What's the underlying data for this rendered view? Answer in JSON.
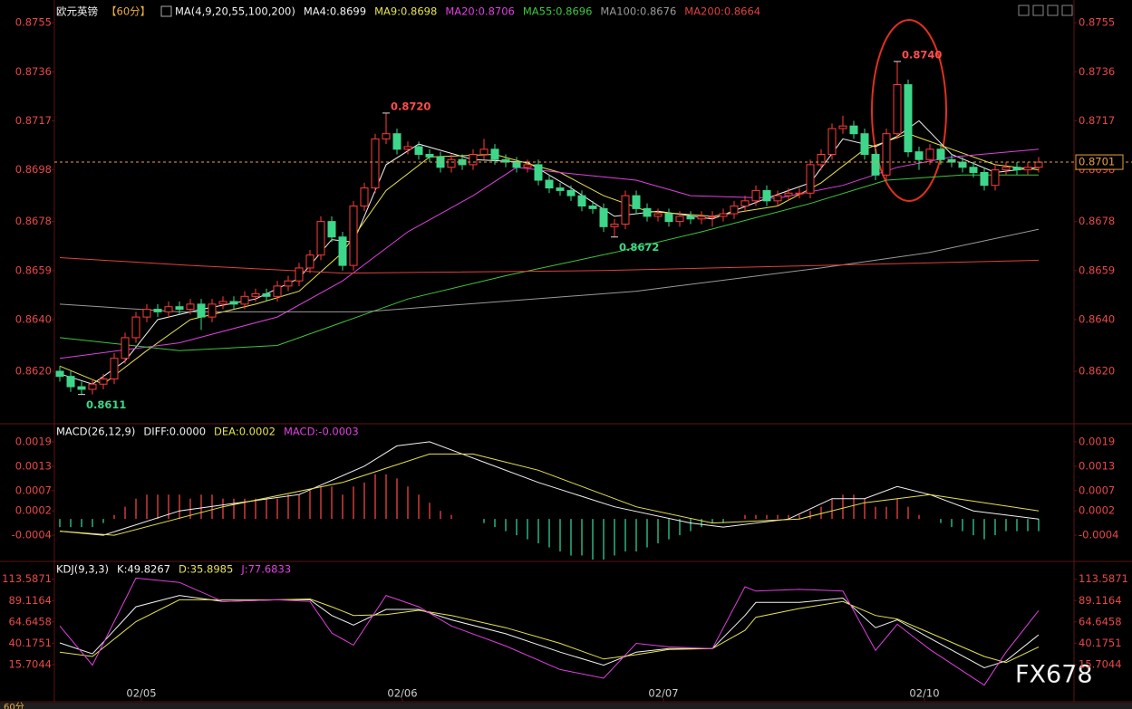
{
  "watermark": "FX678",
  "toolbar": [
    "60分"
  ],
  "chart_data": [
    {
      "type": "candlestick",
      "symbol": "欧元英镑",
      "period": "【60分】",
      "legend_title": "MA(4,9,20,55,100,200)",
      "xlim": [
        -0.5,
        93.25
      ],
      "xticks": [
        {
          "value": 7.5,
          "label": "02/05"
        },
        {
          "value": 31.5,
          "label": "02/06"
        },
        {
          "value": 55.5,
          "label": "02/07"
        },
        {
          "value": 79.5,
          "label": "02/10"
        }
      ],
      "ylim": [
        0.86,
        0.8761
      ],
      "yticks": [
        0.8755,
        0.8736,
        0.8717,
        0.8698,
        0.8678,
        0.8659,
        {
          "value": 0.864,
          "label": "0.8640"
        },
        {
          "value": 0.862,
          "label": "0.8620"
        }
      ],
      "up_color": "#ff3b3b",
      "down_color": "#3ed68a",
      "open": [
        0.862,
        0.8618,
        0.8614,
        0.8613,
        0.8615,
        0.8617,
        0.8625,
        0.8633,
        0.8641,
        0.8644,
        0.8643,
        0.8645,
        0.8644,
        0.8646,
        0.8641,
        0.8646,
        0.8647,
        0.8646,
        0.8649,
        0.865,
        0.8649,
        0.8653,
        0.8655,
        0.866,
        0.8665,
        0.8678,
        0.8672,
        0.8661,
        0.8684,
        0.8691,
        0.871,
        0.8712,
        0.8706,
        0.8707,
        0.8704,
        0.8703,
        0.8699,
        0.8702,
        0.87,
        0.8704,
        0.8706,
        0.8702,
        0.8701,
        0.8699,
        0.87,
        0.8694,
        0.8691,
        0.869,
        0.8688,
        0.8684,
        0.8683,
        0.8676,
        0.8677,
        0.8688,
        0.8683,
        0.868,
        0.8681,
        0.8678,
        0.868,
        0.8679,
        0.868,
        0.868,
        0.8681,
        0.8684,
        0.8686,
        0.869,
        0.8686,
        0.8688,
        0.8689,
        0.8689,
        0.87,
        0.8704,
        0.8714,
        0.8715,
        0.8712,
        0.8704,
        0.8696,
        0.8712,
        0.8731,
        0.8705,
        0.8702,
        0.8706,
        0.8702,
        0.8701,
        0.8699,
        0.8697,
        0.8692,
        0.8698,
        0.8699,
        0.8698,
        0.8699
      ],
      "high": [
        0.8622,
        0.862,
        0.8616,
        0.8617,
        0.8619,
        0.8627,
        0.8635,
        0.8643,
        0.8646,
        0.8646,
        0.8647,
        0.8647,
        0.8648,
        0.8648,
        0.8648,
        0.8649,
        0.8649,
        0.8651,
        0.8652,
        0.8652,
        0.8655,
        0.8657,
        0.8662,
        0.8667,
        0.868,
        0.868,
        0.8674,
        0.8686,
        0.8693,
        0.8712,
        0.872,
        0.8714,
        0.8709,
        0.8709,
        0.8706,
        0.8705,
        0.8704,
        0.8704,
        0.8706,
        0.871,
        0.8708,
        0.8704,
        0.8703,
        0.8702,
        0.8702,
        0.8696,
        0.8693,
        0.8692,
        0.869,
        0.8686,
        0.8685,
        0.8679,
        0.869,
        0.869,
        0.8685,
        0.8683,
        0.8683,
        0.8682,
        0.8682,
        0.8682,
        0.8682,
        0.8683,
        0.8686,
        0.8688,
        0.8692,
        0.8692,
        0.869,
        0.8691,
        0.8691,
        0.8702,
        0.8706,
        0.8716,
        0.8719,
        0.8717,
        0.8714,
        0.8706,
        0.8714,
        0.874,
        0.8733,
        0.8707,
        0.8708,
        0.8708,
        0.8704,
        0.8703,
        0.8701,
        0.8699,
        0.87,
        0.8701,
        0.8701,
        0.8701,
        0.8703
      ],
      "low": [
        0.8616,
        0.8612,
        0.8611,
        0.8611,
        0.8613,
        0.8615,
        0.8623,
        0.8631,
        0.8639,
        0.8641,
        0.8641,
        0.8642,
        0.8642,
        0.8636,
        0.8639,
        0.8644,
        0.8644,
        0.8644,
        0.8647,
        0.8647,
        0.8647,
        0.8651,
        0.8653,
        0.8658,
        0.8663,
        0.867,
        0.8659,
        0.8659,
        0.8682,
        0.8689,
        0.8708,
        0.8704,
        0.8704,
        0.8702,
        0.8701,
        0.8697,
        0.8697,
        0.8698,
        0.8698,
        0.8702,
        0.87,
        0.8699,
        0.8697,
        0.8697,
        0.8692,
        0.8689,
        0.8688,
        0.8686,
        0.8682,
        0.8681,
        0.8674,
        0.8672,
        0.8675,
        0.8681,
        0.8678,
        0.8678,
        0.8676,
        0.8676,
        0.8677,
        0.8677,
        0.8676,
        0.8678,
        0.8679,
        0.8682,
        0.8684,
        0.8684,
        0.8684,
        0.8686,
        0.8687,
        0.8687,
        0.8698,
        0.8702,
        0.8712,
        0.871,
        0.8702,
        0.8694,
        0.8694,
        0.871,
        0.8703,
        0.8698,
        0.87,
        0.87,
        0.8699,
        0.8697,
        0.8695,
        0.869,
        0.869,
        0.8696,
        0.8696,
        0.8696,
        0.8697
      ],
      "close": [
        0.8618,
        0.8614,
        0.8613,
        0.8615,
        0.8617,
        0.8625,
        0.8633,
        0.8641,
        0.8644,
        0.8643,
        0.8645,
        0.8644,
        0.8646,
        0.8641,
        0.8646,
        0.8647,
        0.8646,
        0.8649,
        0.865,
        0.8649,
        0.8653,
        0.8655,
        0.866,
        0.8665,
        0.8678,
        0.8672,
        0.8661,
        0.8684,
        0.8691,
        0.871,
        0.8712,
        0.8706,
        0.8707,
        0.8704,
        0.8703,
        0.8699,
        0.8702,
        0.87,
        0.8704,
        0.8706,
        0.8702,
        0.8701,
        0.8699,
        0.87,
        0.8694,
        0.8691,
        0.869,
        0.8688,
        0.8684,
        0.8683,
        0.8676,
        0.8677,
        0.8688,
        0.8683,
        0.868,
        0.8681,
        0.8678,
        0.868,
        0.8679,
        0.868,
        0.868,
        0.8681,
        0.8684,
        0.8686,
        0.869,
        0.8686,
        0.8688,
        0.8689,
        0.8689,
        0.87,
        0.8704,
        0.8714,
        0.8715,
        0.8712,
        0.8704,
        0.8696,
        0.8712,
        0.8731,
        0.8705,
        0.8702,
        0.8706,
        0.8702,
        0.8701,
        0.8699,
        0.8697,
        0.8692,
        0.8698,
        0.8699,
        0.8698,
        0.8699,
        0.8701
      ],
      "series": [
        {
          "name": "MA4:0.8699",
          "color": "#f2f2f2",
          "x": [
            0,
            3,
            6,
            9,
            13,
            18,
            22,
            25,
            27,
            30,
            33,
            38,
            43,
            47,
            51,
            55,
            60,
            65,
            69,
            72,
            75,
            77,
            79,
            82,
            86,
            90
          ],
          "values": [
            0.8619,
            0.8615,
            0.8624,
            0.864,
            0.8644,
            0.8648,
            0.8656,
            0.8671,
            0.867,
            0.87,
            0.8708,
            0.8702,
            0.8701,
            0.8691,
            0.868,
            0.8682,
            0.8679,
            0.8687,
            0.8693,
            0.871,
            0.8707,
            0.8711,
            0.8717,
            0.8704,
            0.8697,
            0.8699
          ]
        },
        {
          "name": "MA9:0.8698",
          "color": "#e6e34a",
          "x": [
            0,
            4,
            8,
            12,
            18,
            22,
            26,
            30,
            34,
            40,
            46,
            50,
            54,
            60,
            66,
            70,
            74,
            78,
            82,
            86,
            90
          ],
          "values": [
            0.8622,
            0.8615,
            0.8628,
            0.864,
            0.8646,
            0.8651,
            0.8666,
            0.869,
            0.8703,
            0.8704,
            0.8697,
            0.8688,
            0.8682,
            0.868,
            0.8684,
            0.8693,
            0.8706,
            0.8712,
            0.8706,
            0.87,
            0.8698
          ]
        },
        {
          "name": "MA20:0.8706",
          "color": "#e040e0",
          "x": [
            0,
            11,
            20,
            26,
            32,
            38,
            42,
            46,
            53,
            58,
            66,
            72,
            77,
            82,
            90
          ],
          "values": [
            0.8625,
            0.8631,
            0.8641,
            0.8655,
            0.8674,
            0.8688,
            0.8699,
            0.8697,
            0.8694,
            0.8688,
            0.8687,
            0.8692,
            0.8699,
            0.8703,
            0.8706
          ]
        },
        {
          "name": "MA55:0.8696",
          "color": "#3cc83c",
          "x": [
            0,
            11,
            20,
            32,
            41,
            51,
            59,
            69,
            76,
            83,
            90
          ],
          "values": [
            0.8633,
            0.8628,
            0.863,
            0.8648,
            0.8657,
            0.8666,
            0.8674,
            0.8685,
            0.8694,
            0.8696,
            0.8696
          ]
        },
        {
          "name": "MA100:0.8676",
          "color": "#9a9a9a",
          "x": [
            0,
            11,
            28,
            53,
            70,
            80,
            90
          ],
          "values": [
            0.8646,
            0.8643,
            0.8643,
            0.8651,
            0.866,
            0.8666,
            0.8675
          ]
        },
        {
          "name": "MA200:0.8664",
          "color": "#e04040",
          "x": [
            0,
            12,
            26,
            50,
            70,
            90
          ],
          "values": [
            0.8664,
            0.8661,
            0.8658,
            0.8659,
            0.8661,
            0.8663
          ]
        }
      ],
      "annotations": [
        {
          "x": 30,
          "value": 0.872,
          "label": "0.8720",
          "color": "#ff4d4d"
        },
        {
          "x": 2,
          "value": 0.8611,
          "color": "#3ed68a"
        },
        {
          "x": 51,
          "value": 0.8672,
          "color": "#3ed68a"
        },
        {
          "x": 77,
          "value": 0.874,
          "label": "0.8740",
          "color": "#ff4d4d"
        }
      ],
      "last_price": 0.8701,
      "last_price_color": "#e8a040"
    },
    {
      "type": "macd",
      "legend_title": "MACD(26,12,9)",
      "ylim": [
        -0.001,
        0.0023
      ],
      "yticks": [
        0.0019,
        0.0013,
        0.0007,
        0.0002,
        -0.0004
      ],
      "up_color": "#e04040",
      "down_color": "#2fc08a",
      "bars": {
        "name": "MACD:-0.0003",
        "color": "#e040e0",
        "values": [
          -0.0002,
          -0.0002,
          -0.0002,
          -0.0002,
          -0.0001,
          0.0001,
          0.0003,
          0.0005,
          0.0006,
          0.0006,
          0.0006,
          0.0006,
          0.0005,
          0.0006,
          0.0006,
          0.0005,
          0.0005,
          0.0005,
          0.0005,
          0.0005,
          0.0005,
          0.0006,
          0.0006,
          0.0007,
          0.0008,
          0.0008,
          0.0006,
          0.0008,
          0.0009,
          0.0011,
          0.0011,
          0.001,
          0.0008,
          0.0006,
          0.0004,
          0.0002,
          0.0001,
          0,
          0,
          -0.0001,
          -0.0002,
          -0.0003,
          -0.0004,
          -0.0005,
          -0.0006,
          -0.0007,
          -0.0008,
          -0.0009,
          -0.0009,
          -0.001,
          -0.001,
          -0.0009,
          -0.0008,
          -0.0008,
          -0.0007,
          -0.0006,
          -0.0005,
          -0.0004,
          -0.0003,
          -0.0002,
          -0.0001,
          -0.0001,
          0,
          0.0001,
          0.0001,
          0.0001,
          0.0001,
          0.0001,
          0.0001,
          0.0002,
          0.0003,
          0.0005,
          0.0006,
          0.0006,
          0.0005,
          0.0003,
          0.0003,
          0.0005,
          0.0003,
          0.0001,
          0,
          -0.0001,
          -0.0002,
          -0.0003,
          -0.0004,
          -0.0005,
          -0.0004,
          -0.0003,
          -0.0003,
          -0.0003,
          -0.0003
        ]
      },
      "series": [
        {
          "name": "DIFF:0.0000",
          "color": "#f2f2f2",
          "x": [
            0,
            4,
            11,
            22,
            28,
            31,
            34,
            39,
            44,
            51,
            58,
            61,
            67,
            71,
            74,
            77,
            80,
            84,
            90
          ],
          "values": [
            -0.0003,
            -0.0004,
            0.0002,
            0.0006,
            0.0013,
            0.0018,
            0.0019,
            0.0014,
            0.0009,
            0.0003,
            -0.0001,
            -0.0002,
            0,
            0.0005,
            0.0005,
            0.0008,
            0.0006,
            0.0002,
            0
          ]
        },
        {
          "name": "DEA:0.0002",
          "color": "#e6e34a",
          "x": [
            0,
            5,
            15,
            26,
            34,
            38,
            44,
            53,
            60,
            68,
            74,
            80,
            85,
            90
          ],
          "values": [
            -0.0003,
            -0.0004,
            0.0003,
            0.0009,
            0.0016,
            0.0016,
            0.0012,
            0.0003,
            -0.0001,
            0,
            0.0004,
            0.0006,
            0.0004,
            0.0002
          ]
        }
      ]
    },
    {
      "type": "line",
      "legend_title": "KDJ(9,3,3)",
      "ylim": [
        -27,
        132
      ],
      "yticks": [
        113.5871,
        89.1164,
        64.6458,
        40.1751,
        15.7044
      ],
      "series": [
        {
          "name": "K:49.8267",
          "color": "#f2f2f2",
          "x": [
            0,
            3,
            7,
            11,
            15,
            20,
            23,
            25,
            27,
            30,
            33,
            36,
            41,
            46,
            50,
            53,
            56,
            60,
            63,
            64,
            68,
            72,
            75,
            77,
            80,
            85,
            87,
            90
          ],
          "values": [
            40.6,
            28,
            82,
            95,
            88,
            90,
            90,
            72,
            61,
            79,
            79,
            67,
            51,
            30,
            15,
            30,
            34,
            34,
            72,
            87,
            87,
            92,
            58,
            67,
            46,
            12,
            20,
            49.8267
          ]
        },
        {
          "name": "D:35.8985",
          "color": "#e6e34a",
          "x": [
            0,
            3,
            7,
            11,
            15,
            20,
            23,
            25,
            27,
            30,
            33,
            36,
            41,
            46,
            50,
            53,
            56,
            60,
            63,
            64,
            68,
            72,
            75,
            77,
            80,
            85,
            87,
            90
          ],
          "values": [
            30,
            25,
            65,
            90,
            90,
            90,
            91,
            82,
            72,
            73,
            78,
            72,
            58,
            40,
            22,
            27,
            33,
            34,
            55,
            70,
            80,
            88,
            72,
            68,
            52,
            25,
            18,
            35.8985
          ]
        },
        {
          "name": "J:77.6833",
          "color": "#e040e0",
          "x": [
            0,
            3,
            7,
            11,
            15,
            20,
            23,
            25,
            27,
            30,
            33,
            36,
            41,
            46,
            50,
            53,
            56,
            60,
            63,
            64,
            68,
            72,
            75,
            77,
            80,
            85,
            87,
            90
          ],
          "values": [
            60,
            15,
            115,
            110,
            88,
            90,
            88,
            52,
            38,
            95,
            82,
            60,
            37,
            10,
            0,
            40,
            36,
            34,
            105,
            100,
            102,
            100,
            32,
            62,
            33,
            -8,
            30,
            77.6833
          ]
        }
      ]
    }
  ]
}
